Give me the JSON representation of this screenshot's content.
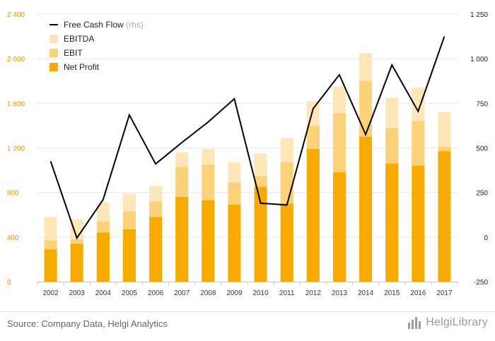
{
  "colors": {
    "net_profit": "#f7aa00",
    "ebit": "#fbd27a",
    "ebitda": "#fde7b8",
    "fcf_line": "#000000",
    "grid": "#e6e6e6",
    "left_axis_text": "#d99a00"
  },
  "footer": {
    "source": "Source: Company Data, Helgi Analytics",
    "brand": "HelgiLibrary",
    "brand_icon": "bar-chart-icon"
  },
  "chart_data": {
    "type": "bar",
    "stacked_overlay": true,
    "categories": [
      "2002",
      "2003",
      "2004",
      "2005",
      "2006",
      "2007",
      "2008",
      "2009",
      "2010",
      "2011",
      "2012",
      "2013",
      "2014",
      "2015",
      "2016",
      "2017"
    ],
    "series": [
      {
        "name": "EBITDA",
        "axis": "left",
        "values": [
          580,
          560,
          710,
          790,
          860,
          1160,
          1190,
          1070,
          1150,
          1290,
          1620,
          1750,
          2050,
          1650,
          1740,
          1520
        ]
      },
      {
        "name": "EBIT",
        "axis": "left",
        "values": [
          370,
          380,
          540,
          630,
          720,
          1030,
          1050,
          890,
          950,
          1070,
          1400,
          1510,
          1800,
          1380,
          1440,
          1210
        ]
      },
      {
        "name": "Net Profit",
        "axis": "left",
        "values": [
          290,
          340,
          440,
          470,
          580,
          760,
          730,
          690,
          850,
          700,
          1190,
          980,
          1300,
          1060,
          1040,
          1170
        ]
      },
      {
        "name": "Free Cash Flow",
        "unit_label": "(rhs)",
        "axis": "right",
        "type": "line",
        "values": [
          425,
          -5,
          210,
          685,
          410,
          530,
          645,
          775,
          190,
          180,
          720,
          910,
          575,
          965,
          705,
          1125
        ]
      }
    ],
    "y_left": {
      "min": 0,
      "max": 2400,
      "ticks": [
        "0",
        "400",
        "800",
        "1 200",
        "1 600",
        "2 000",
        "2 400"
      ]
    },
    "y_right": {
      "min": -250,
      "max": 1250,
      "ticks": [
        "-250",
        "0",
        "250",
        "500",
        "750",
        "1 000",
        "1 250"
      ]
    },
    "legend": {
      "placement": "top-left",
      "items": [
        {
          "label": "Free Cash Flow",
          "unit": "(rhs)",
          "kind": "line"
        },
        {
          "label": "EBITDA",
          "unit": "",
          "kind": "box"
        },
        {
          "label": "EBIT",
          "unit": "",
          "kind": "box"
        },
        {
          "label": "Net Profit",
          "unit": "",
          "kind": "box"
        }
      ]
    },
    "grid": true
  }
}
